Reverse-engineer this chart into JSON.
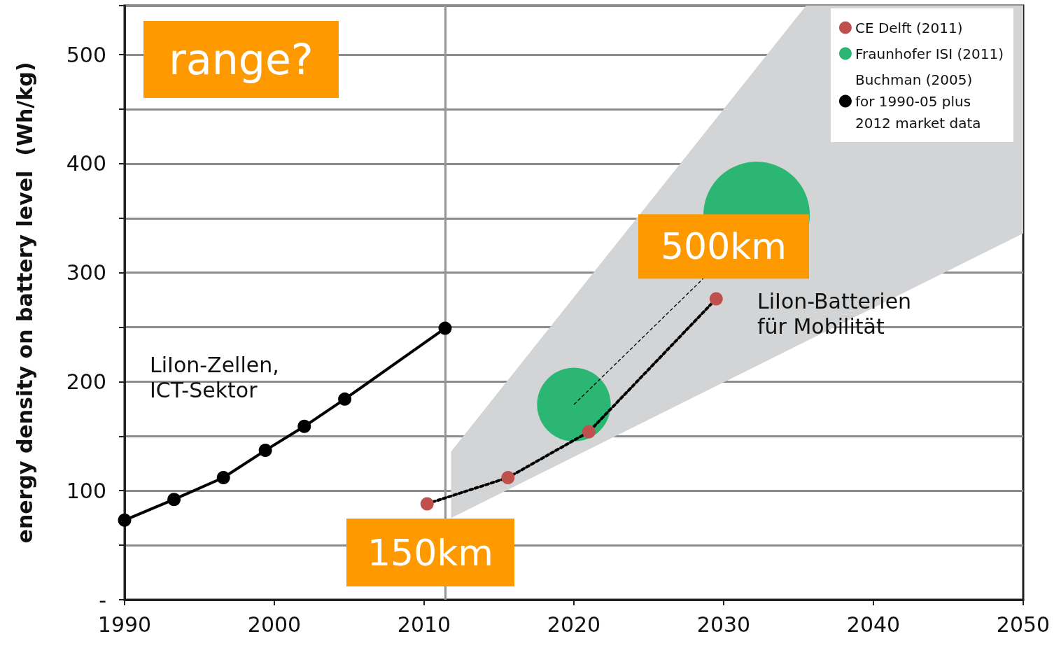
{
  "chart_data": {
    "type": "line",
    "ylabel": "energy density on battery level  (Wh/kg)",
    "xlim": [
      1990,
      2050
    ],
    "xticks": [
      1990,
      2000,
      2010,
      2020,
      2030,
      2040,
      2050
    ],
    "ylim": [
      0,
      545
    ],
    "yticks": [
      {
        "value": 0,
        "label": "-"
      },
      {
        "value": 50,
        "label": null
      },
      100,
      {
        "value": 150,
        "label": null
      },
      200,
      {
        "value": 250,
        "label": null
      },
      300,
      {
        "value": 350,
        "label": null
      },
      400,
      {
        "value": 450,
        "label": null
      },
      500
    ],
    "grid": "y",
    "legend": "top right",
    "marker": "circle",
    "series": [
      {
        "type": "area",
        "color": "#d3d4d6",
        "x": [
          2011.8,
          2035.5,
          2050
        ],
        "values": [
          null,
          null,
          null
        ],
        "lower": [
          75,
          237,
          336
        ],
        "upper": [
          136,
          545,
          545
        ]
      },
      {
        "type": "line",
        "name": "Buchman (2005)\nfor 1990-05 plus\n2012 market data",
        "color": "#000000",
        "line_style": "solid",
        "x": [
          1990,
          1993.3,
          1996.6,
          1999.4,
          2002,
          2004.7,
          2011.4
        ],
        "values": [
          73,
          92,
          112,
          137,
          159,
          184,
          249
        ]
      },
      {
        "name": "CE Delft (2011)",
        "color": "#c0504d",
        "line_style": "dotted",
        "x": [
          2010.2,
          2015.6,
          2021,
          2029.5
        ],
        "values": [
          88,
          112,
          154,
          276
        ]
      },
      {
        "type": "bubble",
        "name": "Fraunhofer ISI (2011)",
        "color": "#2bb673",
        "x": [
          2020,
          2032.2
        ],
        "values": [
          179,
          353
        ],
        "sizes": [
          0.48,
          1
        ]
      }
    ],
    "ref_lines": [
      {
        "axis": "x",
        "value": 2011.4,
        "color": "#939598"
      }
    ],
    "annotations": [
      "range?",
      {
        "text": "500km",
        "x": 2020,
        "y": 179
      },
      "150km",
      "LiIon-Zellen,\nICT-Sektor",
      "LiIon-Batterien\nfür Mobilität"
    ]
  }
}
